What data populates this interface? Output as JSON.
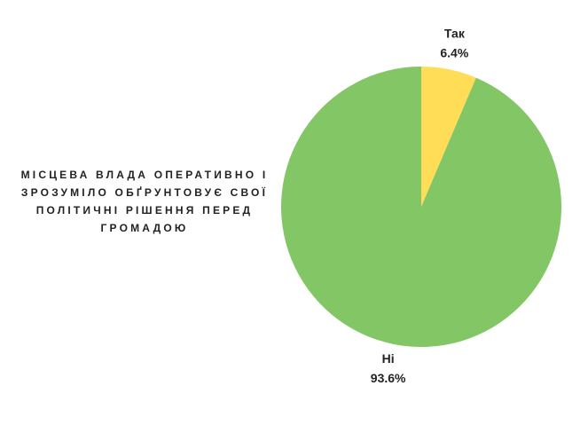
{
  "chart_data": {
    "type": "pie",
    "title": "МІСЦЕВА ВЛАДА ОПЕРАТИВНО І ЗРОЗУМІЛО ОБҐРУНТОВУЄ СВОЇ ПОЛІТИЧНІ РІШЕННЯ ПЕРЕД ГРОМАДОЮ",
    "categories": [
      "Так",
      "Ні"
    ],
    "values": [
      6.4,
      93.6
    ],
    "value_labels": [
      "6.4%",
      "93.6%"
    ],
    "colors": [
      "#ffdd57",
      "#82c665"
    ]
  }
}
